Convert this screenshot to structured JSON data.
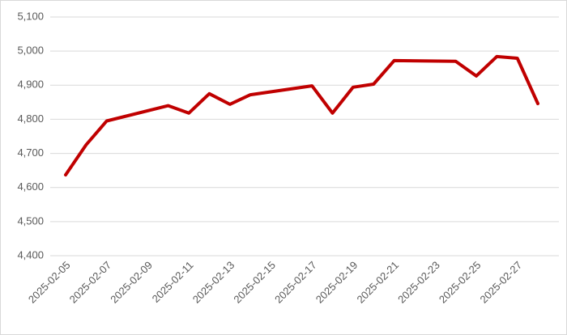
{
  "chart_data": {
    "type": "line",
    "x": [
      "2025-02-05",
      "2025-02-06",
      "2025-02-07",
      "2025-02-10",
      "2025-02-11",
      "2025-02-12",
      "2025-02-13",
      "2025-02-14",
      "2025-02-17",
      "2025-02-18",
      "2025-02-19",
      "2025-02-20",
      "2025-02-21",
      "2025-02-24",
      "2025-02-25",
      "2025-02-26",
      "2025-02-27",
      "2025-02-28"
    ],
    "series": [
      {
        "name": null,
        "color": "#c00000",
        "values": [
          4637,
          4725,
          4795,
          4840,
          4818,
          4875,
          4844,
          4872,
          4898,
          4818,
          4894,
          4903,
          4972,
          4970,
          4927,
          4984,
          4979,
          4846
        ]
      }
    ],
    "xlim": [
      "2025-02-05",
      "2025-02-28"
    ],
    "xticks": [
      "2025-02-05",
      "2025-02-07",
      "2025-02-09",
      "2025-02-11",
      "2025-02-13",
      "2025-02-15",
      "2025-02-17",
      "2025-02-19",
      "2025-02-21",
      "2025-02-23",
      "2025-02-25",
      "2025-02-27"
    ],
    "ylim": [
      4400,
      5100
    ],
    "yticks": [
      {
        "value": 4400,
        "label": "4,400"
      },
      {
        "value": 4500,
        "label": "4,500"
      },
      {
        "value": 4600,
        "label": "4,600"
      },
      {
        "value": 4700,
        "label": "4,700"
      },
      {
        "value": 4800,
        "label": "4,800"
      },
      {
        "value": 4900,
        "label": "4,900"
      },
      {
        "value": 5000,
        "label": "5,000"
      },
      {
        "value": 5100,
        "label": "5,100"
      }
    ],
    "grid": true
  }
}
